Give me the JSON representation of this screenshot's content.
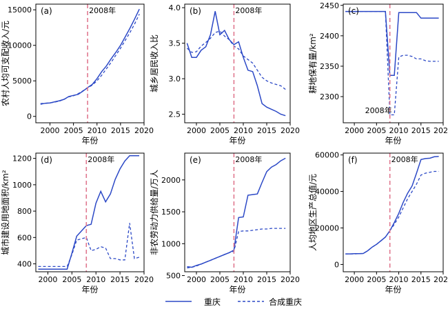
{
  "legend": {
    "items": [
      {
        "label": "重庆",
        "style": "solid"
      },
      {
        "label": "合成重庆",
        "style": "dashed"
      }
    ]
  },
  "colors": {
    "series": "#2b48c6",
    "treatment_line": "#e0788f"
  },
  "treatment_label": "2008年",
  "chart_data": [
    {
      "type": "line",
      "panel": "(a)",
      "ylabel": "农村人均可支配收入/元",
      "xlabel": "年份",
      "xlim": [
        1997,
        2020
      ],
      "ylim": [
        -900,
        15800
      ],
      "xticks": [
        2000,
        2005,
        2010,
        2015,
        2020
      ],
      "yticks": [
        0,
        5000,
        10000,
        15000
      ],
      "vline": 2008,
      "x": [
        1998,
        1999,
        2000,
        2001,
        2002,
        2003,
        2004,
        2005,
        2006,
        2007,
        2008,
        2009,
        2010,
        2011,
        2012,
        2013,
        2014,
        2015,
        2016,
        2017,
        2018,
        2019
      ],
      "series": [
        {
          "name": "重庆",
          "values": [
            1700,
            1850,
            1900,
            2050,
            2200,
            2400,
            2800,
            2950,
            3100,
            3550,
            4050,
            4500,
            5300,
            6300,
            7100,
            8100,
            9000,
            10000,
            11200,
            12400,
            13700,
            15100
          ]
        },
        {
          "name": "合成重庆",
          "values": [
            1800,
            1850,
            1900,
            2000,
            2150,
            2400,
            2750,
            2900,
            3200,
            3600,
            4000,
            4400,
            5000,
            5800,
            6700,
            7600,
            8600,
            9600,
            10700,
            11800,
            13000,
            14400
          ]
        }
      ]
    },
    {
      "type": "line",
      "panel": "(b)",
      "ylabel": "城乡居民收入比",
      "xlabel": "年份",
      "xlim": [
        1997.5,
        2020
      ],
      "ylim": [
        2.38,
        4.05
      ],
      "xticks": [
        2000,
        2005,
        2010,
        2015,
        2020
      ],
      "yticks": [
        2.5,
        3.0,
        3.5,
        4.0
      ],
      "vline": 2008,
      "x": [
        1998,
        1999,
        2000,
        2001,
        2002,
        2003,
        2004,
        2005,
        2006,
        2007,
        2008,
        2009,
        2010,
        2011,
        2012,
        2013,
        2014,
        2015,
        2016,
        2017,
        2018,
        2019
      ],
      "series": [
        {
          "name": "重庆",
          "values": [
            3.5,
            3.3,
            3.3,
            3.4,
            3.45,
            3.62,
            3.95,
            3.62,
            3.68,
            3.55,
            3.48,
            3.52,
            3.3,
            3.12,
            3.1,
            2.9,
            2.65,
            2.6,
            2.57,
            2.54,
            2.5,
            2.48
          ]
        },
        {
          "name": "合成重庆",
          "values": [
            3.43,
            3.37,
            3.38,
            3.46,
            3.51,
            3.57,
            3.65,
            3.67,
            3.6,
            3.55,
            3.46,
            3.42,
            3.32,
            3.27,
            3.22,
            3.12,
            3.02,
            2.97,
            2.94,
            2.92,
            2.9,
            2.85
          ]
        }
      ]
    },
    {
      "type": "line",
      "panel": "(c)",
      "ylabel": "耕地保有量/km²",
      "xlabel": "年份",
      "xlim": [
        1997.5,
        2020
      ],
      "ylim": [
        2257,
        2452
      ],
      "xticks": [
        2000,
        2005,
        2010,
        2015,
        2020
      ],
      "yticks": [
        2300,
        2350,
        2400,
        2450
      ],
      "vline": 2008,
      "vline_label_position": "bottom",
      "x": [
        1998,
        1999,
        2000,
        2001,
        2002,
        2003,
        2004,
        2005,
        2006,
        2007,
        2008,
        2009,
        2010,
        2011,
        2012,
        2013,
        2014,
        2015,
        2016,
        2017,
        2018,
        2019
      ],
      "series": [
        {
          "name": "重庆",
          "values": [
            2440,
            2440,
            2440,
            2440,
            2440,
            2440,
            2440,
            2440,
            2440,
            2440,
            2335,
            2335,
            2438,
            2438,
            2438,
            2438,
            2438,
            2429,
            2429,
            2429,
            2429,
            2429
          ]
        },
        {
          "name": "合成重庆",
          "values": [
            2440,
            2440,
            2440,
            2440,
            2440,
            2440,
            2440,
            2440,
            2440,
            2440,
            2270,
            2270,
            2365,
            2368,
            2368,
            2366,
            2362,
            2362,
            2359,
            2358,
            2358,
            2358
          ]
        }
      ]
    },
    {
      "type": "line",
      "panel": "(d)",
      "ylabel": "城市建设用地面积/km²",
      "xlabel": "年份",
      "xlim": [
        1997.5,
        2020
      ],
      "ylim": [
        340,
        1240
      ],
      "xticks": [
        2000,
        2005,
        2010,
        2015,
        2020
      ],
      "yticks": [
        400,
        600,
        800,
        1000,
        1200
      ],
      "vline": 2008,
      "x": [
        1998,
        1999,
        2000,
        2001,
        2002,
        2003,
        2004,
        2005,
        2006,
        2007,
        2008,
        2009,
        2010,
        2011,
        2012,
        2013,
        2014,
        2015,
        2016,
        2017,
        2018,
        2019
      ],
      "series": [
        {
          "name": "重庆",
          "values": [
            360,
            360,
            360,
            360,
            360,
            360,
            360,
            480,
            610,
            650,
            690,
            700,
            860,
            950,
            870,
            930,
            1040,
            1120,
            1180,
            1220,
            1220,
            1220
          ]
        },
        {
          "name": "合成重庆",
          "values": [
            380,
            380,
            380,
            380,
            380,
            380,
            380,
            470,
            580,
            590,
            600,
            500,
            510,
            530,
            520,
            440,
            440,
            430,
            430,
            710,
            440,
            450
          ]
        }
      ]
    },
    {
      "type": "line",
      "panel": "(e)",
      "ylabel": "非农劳动力供给量/万人",
      "xlabel": "年份",
      "xlim": [
        1997.5,
        2020
      ],
      "ylim": [
        560,
        2420
      ],
      "xticks": [
        2000,
        2005,
        2010,
        2015,
        2020
      ],
      "yticks": [
        500,
        1000,
        1500,
        2000
      ],
      "vline": 2008,
      "x": [
        1998,
        1999,
        2000,
        2001,
        2002,
        2003,
        2004,
        2005,
        2006,
        2007,
        2008,
        2009,
        2010,
        2011,
        2012,
        2013,
        2014,
        2015,
        2016,
        2017,
        2018,
        2019
      ],
      "series": [
        {
          "name": "重庆",
          "values": [
            640,
            630,
            660,
            680,
            710,
            740,
            770,
            800,
            830,
            860,
            900,
            1410,
            1420,
            1760,
            1770,
            1780,
            1960,
            2130,
            2200,
            2240,
            2300,
            2340
          ]
        },
        {
          "name": "合成重庆",
          "values": [
            620,
            630,
            650,
            680,
            710,
            740,
            770,
            800,
            830,
            860,
            880,
            1190,
            1200,
            1200,
            1210,
            1220,
            1230,
            1230,
            1240,
            1240,
            1240,
            1240
          ]
        }
      ]
    },
    {
      "type": "line",
      "panel": "(f)",
      "ylabel": "人均地区生产总值/元",
      "xlabel": "年份",
      "xlim": [
        1997.5,
        2020
      ],
      "ylim": [
        -4000,
        61000
      ],
      "xticks": [
        2000,
        2005,
        2010,
        2015,
        2020
      ],
      "yticks": [
        0,
        20000,
        40000,
        60000
      ],
      "vline": 2008,
      "x": [
        1998,
        1999,
        2000,
        2001,
        2002,
        2003,
        2004,
        2005,
        2006,
        2007,
        2008,
        2009,
        2010,
        2011,
        2012,
        2013,
        2014,
        2015,
        2016,
        2017,
        2018,
        2019
      ],
      "series": [
        {
          "name": "重庆",
          "values": [
            5800,
            5800,
            5900,
            5900,
            6000,
            7500,
            9500,
            11000,
            13000,
            15000,
            18500,
            23000,
            28000,
            34000,
            39000,
            43000,
            50000,
            57500,
            58000,
            58200,
            59000,
            59200
          ]
        },
        {
          "name": "合成重庆",
          "values": [
            5800,
            5800,
            5800,
            5900,
            6000,
            7500,
            9500,
            11000,
            13000,
            15000,
            18500,
            22000,
            26000,
            31000,
            36000,
            40000,
            44000,
            49000,
            50000,
            50500,
            51000,
            51000
          ]
        }
      ]
    }
  ]
}
